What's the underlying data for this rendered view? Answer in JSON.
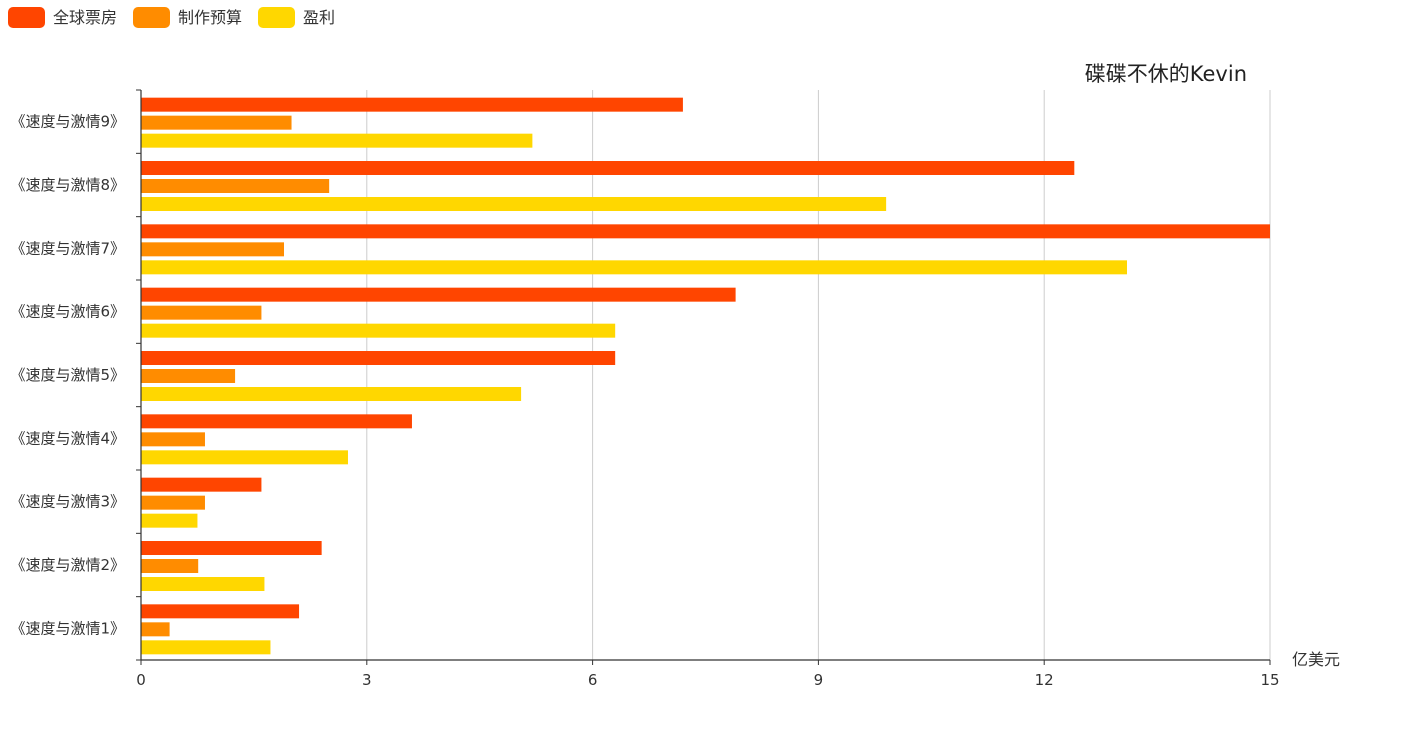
{
  "chart_data": {
    "type": "bar",
    "orientation": "horizontal",
    "title": "碟碟不休的Kevin",
    "xlabel": "亿美元",
    "ylabel": "",
    "xlim": [
      0,
      15
    ],
    "xticks": [
      "0",
      "3",
      "6",
      "9",
      "12",
      "15"
    ],
    "grid": true,
    "legend_position": "top-left",
    "categories": [
      "《速度与激情1》",
      "《速度与激情2》",
      "《速度与激情3》",
      "《速度与激情4》",
      "《速度与激情5》",
      "《速度与激情6》",
      "《速度与激情7》",
      "《速度与激情8》",
      "《速度与激情9》"
    ],
    "series": [
      {
        "name": "全球票房",
        "color": "#ff4500",
        "values": [
          2.1,
          2.4,
          1.6,
          3.6,
          6.3,
          7.9,
          15.0,
          12.4,
          7.2
        ]
      },
      {
        "name": "制作预算",
        "color": "#ff8c00",
        "values": [
          0.38,
          0.76,
          0.85,
          0.85,
          1.25,
          1.6,
          1.9,
          2.5,
          2.0
        ]
      },
      {
        "name": "盈利",
        "color": "#ffd700",
        "values": [
          1.72,
          1.64,
          0.75,
          2.75,
          5.05,
          6.3,
          13.1,
          9.9,
          5.2
        ]
      }
    ]
  }
}
